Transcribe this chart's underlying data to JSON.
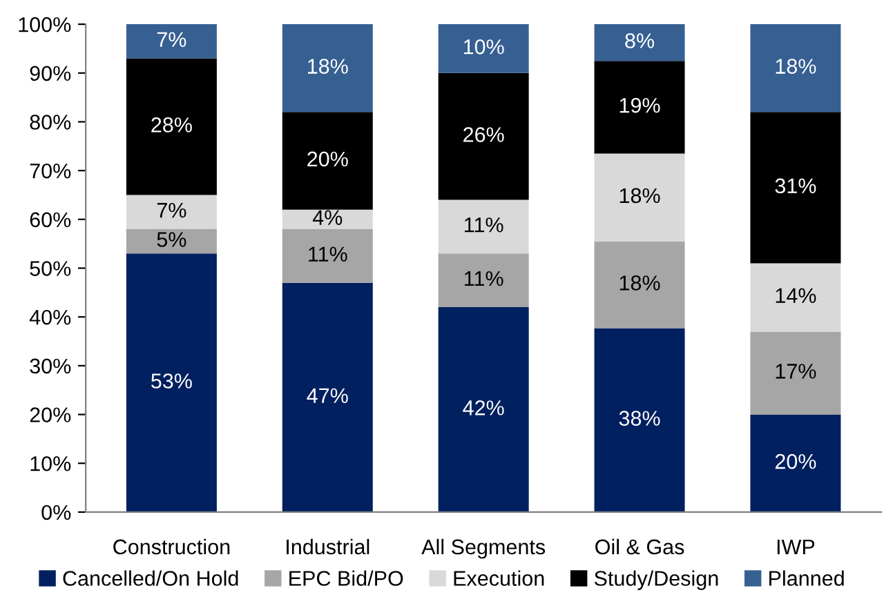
{
  "chart_data": {
    "type": "bar",
    "stacked": true,
    "categories": [
      "Construction",
      "Industrial",
      "All Segments",
      "Oil & Gas",
      "IWP"
    ],
    "series": [
      {
        "name": "Cancelled/On Hold",
        "color": "#002060",
        "values": [
          53,
          47,
          42,
          37.7,
          20
        ],
        "value_labels": [
          "53%",
          "47%",
          "42%",
          "38%",
          "20%"
        ]
      },
      {
        "name": "EPC Bid/PO",
        "color": "#a6a6a6",
        "values": [
          5,
          11,
          11,
          17.8,
          17
        ],
        "value_labels": [
          "5%",
          "11%",
          "11%",
          "18%",
          "17%"
        ]
      },
      {
        "name": "Execution",
        "color": "#d9d9d9",
        "values": [
          7,
          4,
          11,
          18,
          14
        ],
        "value_labels": [
          "7%",
          "4%",
          "11%",
          "18%",
          "14%"
        ]
      },
      {
        "name": "Study/Design",
        "color": "#000000",
        "values": [
          28,
          20,
          26,
          19,
          31
        ],
        "value_labels": [
          "28%",
          "20%",
          "26%",
          "19%",
          "31%"
        ]
      },
      {
        "name": "Planned",
        "color": "#376092",
        "values": [
          7,
          18,
          10,
          7.5,
          18
        ],
        "value_labels": [
          "7%",
          "18%",
          "10%",
          "8%",
          "18%"
        ]
      }
    ],
    "ylim": [
      0,
      100
    ],
    "yticks": [
      {
        "value": 0,
        "label": "0%"
      },
      {
        "value": 10,
        "label": "10%"
      },
      {
        "value": 20,
        "label": "20%"
      },
      {
        "value": 30,
        "label": "30%"
      },
      {
        "value": 40,
        "label": "40%"
      },
      {
        "value": 50,
        "label": "50%"
      },
      {
        "value": 60,
        "label": "60%"
      },
      {
        "value": 70,
        "label": "70%"
      },
      {
        "value": 80,
        "label": "80%"
      },
      {
        "value": 90,
        "label": "90%"
      },
      {
        "value": 100,
        "label": "100%"
      }
    ],
    "grid": false,
    "legend": "bottom"
  }
}
